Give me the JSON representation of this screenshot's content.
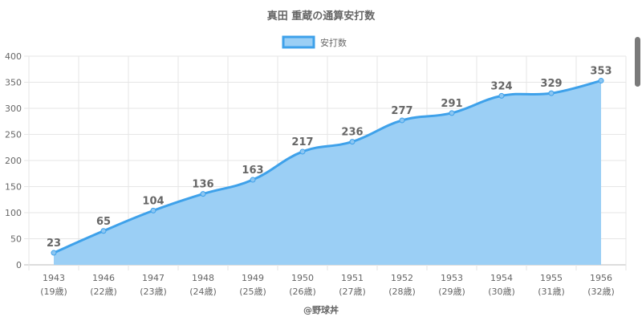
{
  "chart_data": {
    "type": "area",
    "title": "真田 重蔵の通算安打数",
    "legend": {
      "label": "安打数",
      "placement": "top"
    },
    "categories": [
      "1943",
      "1946",
      "1947",
      "1948",
      "1949",
      "1950",
      "1951",
      "1952",
      "1953",
      "1954",
      "1955",
      "1956"
    ],
    "sublabels": [
      "(19歳)",
      "(22歳)",
      "(23歳)",
      "(24歳)",
      "(25歳)",
      "(26歳)",
      "(27歳)",
      "(28歳)",
      "(29歳)",
      "(30歳)",
      "(31歳)",
      "(32歳)"
    ],
    "series": [
      {
        "name": "安打数",
        "values": [
          23,
          65,
          104,
          136,
          163,
          217,
          236,
          277,
          291,
          324,
          329,
          353
        ]
      }
    ],
    "ylim": [
      0,
      400
    ],
    "yticks": [
      0,
      50,
      100,
      150,
      200,
      250,
      300,
      350,
      400
    ],
    "grid": true,
    "data_labels": true,
    "footer": "@野球丼",
    "colors": {
      "line": "#3ea1ea",
      "fill": "#9bcff5",
      "text": "#666666"
    }
  }
}
